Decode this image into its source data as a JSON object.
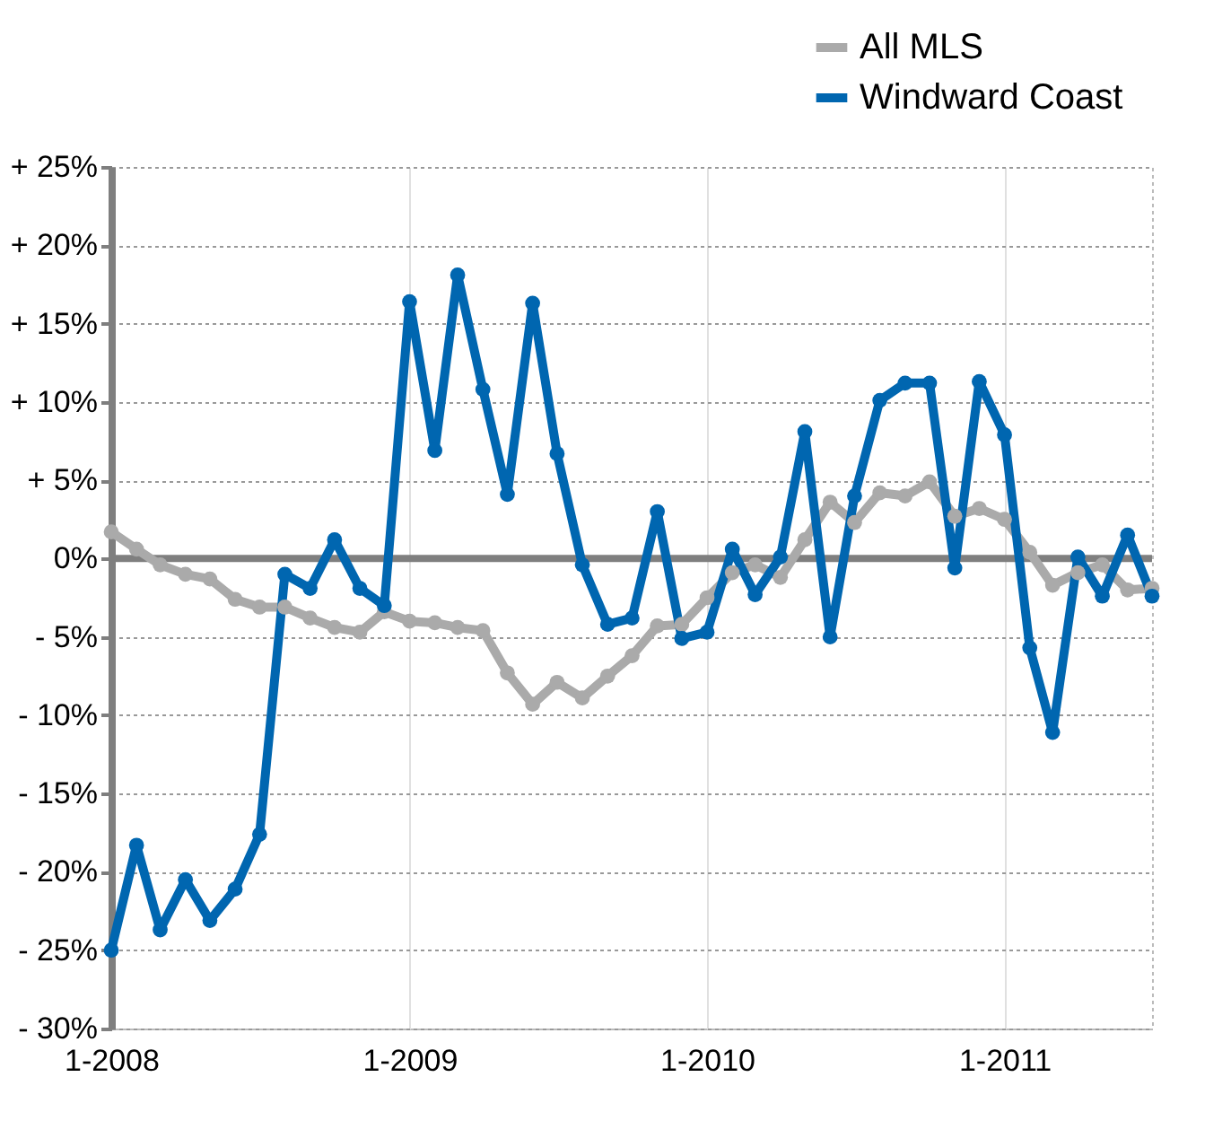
{
  "chart_data": {
    "type": "line",
    "x": [
      "2008-01",
      "2008-02",
      "2008-03",
      "2008-04",
      "2008-05",
      "2008-06",
      "2008-07",
      "2008-08",
      "2008-09",
      "2008-10",
      "2008-11",
      "2008-12",
      "2009-01",
      "2009-02",
      "2009-03",
      "2009-04",
      "2009-05",
      "2009-06",
      "2009-07",
      "2009-08",
      "2009-09",
      "2009-10",
      "2009-11",
      "2009-12",
      "2010-01",
      "2010-02",
      "2010-03",
      "2010-04",
      "2010-05",
      "2010-06",
      "2010-07",
      "2010-08",
      "2010-09",
      "2010-10",
      "2010-11",
      "2010-12",
      "2011-01",
      "2011-02",
      "2011-03",
      "2011-04",
      "2011-05",
      "2011-06",
      "2011-07"
    ],
    "series": [
      {
        "name": "All MLS",
        "color": "#aaaaaa",
        "values": [
          1.7,
          0.6,
          -0.4,
          -1.0,
          -1.3,
          -2.6,
          -3.1,
          -3.1,
          -3.8,
          -4.4,
          -4.7,
          -3.4,
          -4.0,
          -4.1,
          -4.4,
          -4.6,
          -7.3,
          -9.3,
          -7.9,
          -8.9,
          -7.5,
          -6.2,
          -4.3,
          -4.2,
          -2.5,
          -0.9,
          -0.4,
          -1.2,
          1.2,
          3.6,
          2.3,
          4.2,
          4.0,
          4.9,
          2.7,
          3.2,
          2.5,
          0.4,
          -1.7,
          -0.9,
          -0.4,
          -2.0,
          -1.9
        ]
      },
      {
        "name": "Windward Coast",
        "color": "#0066b0",
        "values": [
          -25.0,
          -18.3,
          -23.7,
          -20.5,
          -23.1,
          -21.1,
          -17.6,
          -1.0,
          -1.9,
          1.2,
          -1.9,
          -3.0,
          16.4,
          6.9,
          18.1,
          10.8,
          4.1,
          16.3,
          6.7,
          -0.4,
          -4.2,
          -3.8,
          3.0,
          -5.1,
          -4.7,
          0.6,
          -2.3,
          0.1,
          8.1,
          -5.0,
          4.0,
          10.1,
          11.2,
          11.2,
          -0.6,
          11.3,
          7.9,
          -5.7,
          -11.1,
          0.1,
          -2.4,
          1.5,
          -2.4
        ]
      }
    ],
    "xlim": [
      "2008-01",
      "2011-07"
    ],
    "xticks": [
      {
        "value": "2008-01",
        "label": "1-2008"
      },
      {
        "value": "2009-01",
        "label": "1-2009"
      },
      {
        "value": "2010-01",
        "label": "1-2010"
      },
      {
        "value": "2011-01",
        "label": "1-2011"
      }
    ],
    "ylim": [
      -30,
      25
    ],
    "yticks": [
      {
        "value": -30,
        "label": "- 30%"
      },
      {
        "value": -25,
        "label": "- 25%"
      },
      {
        "value": -20,
        "label": "- 20%"
      },
      {
        "value": -15,
        "label": "- 15%"
      },
      {
        "value": -10,
        "label": "- 10%"
      },
      {
        "value": -5,
        "label": "- 5%"
      },
      {
        "value": 0,
        "label": "0%"
      },
      {
        "value": 5,
        "label": "+ 5%"
      },
      {
        "value": 10,
        "label": "+ 10%"
      },
      {
        "value": 15,
        "label": "+ 15%"
      },
      {
        "value": 20,
        "label": "+ 20%"
      },
      {
        "value": 25,
        "label": "+ 25%"
      }
    ],
    "ref_lines": [
      {
        "axis": "y",
        "value": 0,
        "color": "#7f7f7f"
      }
    ],
    "grid": true,
    "legend": "top right",
    "marker": "circle",
    "line_style": "solid"
  }
}
